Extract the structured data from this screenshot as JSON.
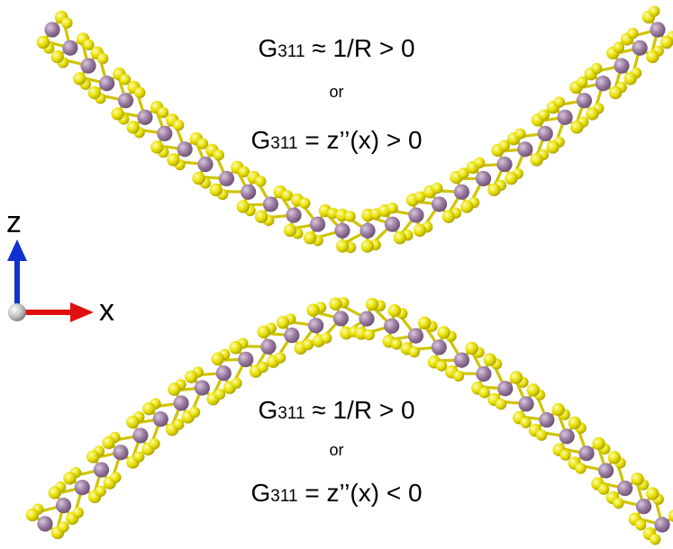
{
  "sheets": {
    "metal_color": "#9a7aa0",
    "metal_highlight": "#c9b3cc",
    "chalcogen_color": "#e8e000",
    "chalcogen_highlight": "#fbf88a",
    "bond_color": "#cfc400"
  },
  "top_block": {
    "eq1": {
      "symbol": "G",
      "subscript": "311",
      "rhs": " ≈ 1/R > 0"
    },
    "or": "or",
    "eq2": {
      "symbol": "G",
      "subscript": "311",
      "rhs": " = z’’(x) > 0"
    }
  },
  "bottom_block": {
    "eq1": {
      "symbol": "G",
      "subscript": "311",
      "rhs": " ≈ 1/R > 0"
    },
    "or": "or",
    "eq2": {
      "symbol": "G",
      "subscript": "311",
      "rhs": " = z’’(x) < 0"
    }
  },
  "axes": {
    "z_label": "z",
    "x_label": "x",
    "z_color": "#1030d0",
    "x_color": "#e01010",
    "origin_color": "#bdbdbd"
  }
}
